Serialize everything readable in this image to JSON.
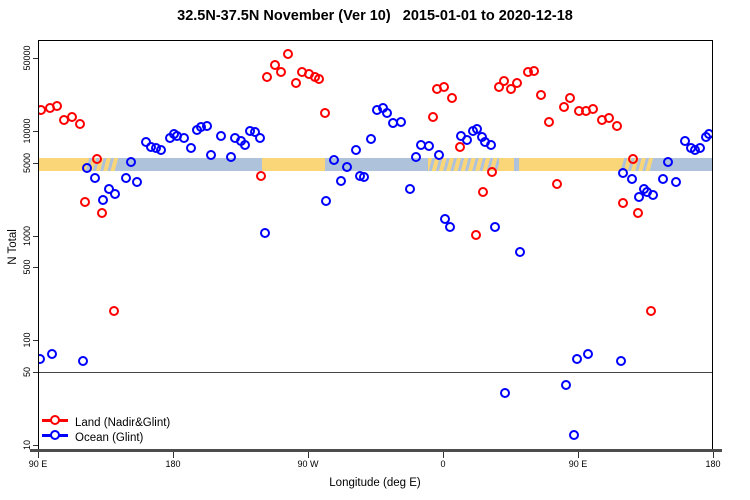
{
  "title": "32.5N-37.5N November (Ver 10)   2015-01-01 to 2020-12-18",
  "axes": {
    "x_label": "Longitude (deg E)",
    "y_label": "N Total"
  },
  "legend": {
    "items": [
      {
        "label": "Land (Nadir&Glint)",
        "color": "#ff0000"
      },
      {
        "label": "Ocean (Glint)",
        "color": "#0000ff"
      }
    ]
  },
  "chart_data": {
    "type": "scatter",
    "title": "32.5N-37.5N November (Ver 10)   2015-01-01 to 2020-12-18",
    "xlabel": "Longitude (deg E)",
    "ylabel": "N Total",
    "x_axis_note": "longitude increasing eastward from 90E, wrapping through 180, 90W, 0, 90E to 180 (450 deg span)",
    "x_axis_degrees_range": [
      90,
      540
    ],
    "y_scale": "log10",
    "y_log_range": [
      0.951,
      4.871
    ],
    "x_ticks": [
      {
        "t": 90,
        "label": "90 E"
      },
      {
        "t": 180,
        "label": "180"
      },
      {
        "t": 270,
        "label": "90 W"
      },
      {
        "t": 360,
        "label": "0"
      },
      {
        "t": 450,
        "label": "90 E"
      },
      {
        "t": 540,
        "label": "180"
      }
    ],
    "y_ticks": [
      {
        "v": 10,
        "label": "10"
      },
      {
        "v": 50,
        "label": "50"
      },
      {
        "v": 100,
        "label": "100"
      },
      {
        "v": 500,
        "label": "500"
      },
      {
        "v": 1000,
        "label": "1000"
      },
      {
        "v": 5000,
        "label": "5000"
      },
      {
        "v": 10000,
        "label": "10000"
      },
      {
        "v": 50000,
        "label": "50000"
      }
    ],
    "reference_line_y": 50,
    "map_strip": {
      "description": "land/ocean strip for 32.5N-37.5N drawn across plot near N=5000",
      "n_range": [
        4170,
        5530
      ],
      "land_color": "#fbd679",
      "ocean_color": "#afc2dc",
      "segments": [
        {
          "from": 90,
          "to": 121,
          "type": "land"
        },
        {
          "from": 121,
          "to": 143,
          "type": "coast"
        },
        {
          "from": 143,
          "to": 239,
          "type": "ocean"
        },
        {
          "from": 239,
          "to": 281,
          "type": "land"
        },
        {
          "from": 281,
          "to": 350,
          "type": "ocean"
        },
        {
          "from": 350,
          "to": 397,
          "type": "coast"
        },
        {
          "from": 397,
          "to": 407.5,
          "type": "land"
        },
        {
          "from": 407.5,
          "to": 410.5,
          "type": "ocean"
        },
        {
          "from": 410.5,
          "to": 478,
          "type": "land"
        },
        {
          "from": 478,
          "to": 500,
          "type": "coast"
        },
        {
          "from": 500,
          "to": 540,
          "type": "ocean"
        }
      ]
    },
    "series": [
      {
        "name": "Land (Nadir&Glint)",
        "color": "#ff0000",
        "points": [
          [
            91.8,
            15900
          ],
          [
            97.8,
            16500
          ],
          [
            102.7,
            17400
          ],
          [
            107.3,
            12800
          ],
          [
            112.9,
            13600
          ],
          [
            117.8,
            11600
          ],
          [
            121.1,
            2080
          ],
          [
            129.5,
            5370
          ],
          [
            132.7,
            1640
          ],
          [
            140.9,
            189
          ],
          [
            238.9,
            3720
          ],
          [
            242.9,
            32700
          ],
          [
            248.2,
            42900
          ],
          [
            251.8,
            36500
          ],
          [
            256.7,
            54600
          ],
          [
            261.8,
            29000
          ],
          [
            266.2,
            36500
          ],
          [
            270.5,
            34900
          ],
          [
            274.5,
            33100
          ],
          [
            277.3,
            31300
          ],
          [
            281.5,
            15000
          ],
          [
            353.3,
            13600
          ],
          [
            356.2,
            25100
          ],
          [
            360.7,
            26600
          ],
          [
            366.2,
            20600
          ],
          [
            371.1,
            7000
          ],
          [
            381.8,
            1020
          ],
          [
            386.7,
            2640
          ],
          [
            392.7,
            4090
          ],
          [
            397.1,
            26600
          ],
          [
            400.7,
            30300
          ],
          [
            405.1,
            25100
          ],
          [
            409.5,
            28600
          ],
          [
            416.7,
            37000
          ],
          [
            420.7,
            37800
          ],
          [
            425.5,
            22100
          ],
          [
            430.5,
            12100
          ],
          [
            436.2,
            3130
          ],
          [
            440.7,
            16900
          ],
          [
            444.6,
            20500
          ],
          [
            450.7,
            15500
          ],
          [
            455.3,
            15700
          ],
          [
            459.8,
            16400
          ],
          [
            465.8,
            12800
          ],
          [
            470.9,
            13300
          ],
          [
            476.2,
            11200
          ],
          [
            479.8,
            2060
          ],
          [
            486.5,
            5370
          ],
          [
            490.2,
            1630
          ],
          [
            498.7,
            190
          ]
        ]
      },
      {
        "name": "Ocean (Glint)",
        "color": "#0000ff",
        "points": [
          [
            91.3,
            66
          ],
          [
            99.1,
            74
          ],
          [
            120.2,
            64
          ],
          [
            122.9,
            4410
          ],
          [
            128.2,
            3540
          ],
          [
            133.5,
            2190
          ],
          [
            137.1,
            2780
          ],
          [
            141.1,
            2510
          ],
          [
            148.5,
            3540
          ],
          [
            152.2,
            5090
          ],
          [
            156.0,
            3290
          ],
          [
            162.2,
            7910
          ],
          [
            165.5,
            7080
          ],
          [
            168.9,
            6840
          ],
          [
            171.8,
            6590
          ],
          [
            177.8,
            8530
          ],
          [
            180.7,
            9380
          ],
          [
            182.9,
            8900
          ],
          [
            187.3,
            8530
          ],
          [
            191.8,
            6840
          ],
          [
            196.2,
            10200
          ],
          [
            198.9,
            10900
          ],
          [
            202.9,
            11200
          ],
          [
            205.3,
            5900
          ],
          [
            212.0,
            9000
          ],
          [
            218.9,
            5620
          ],
          [
            221.1,
            8530
          ],
          [
            225.1,
            8090
          ],
          [
            228.2,
            7360
          ],
          [
            231.1,
            10100
          ],
          [
            234.9,
            9800
          ],
          [
            237.8,
            8530
          ],
          [
            241.1,
            1070
          ],
          [
            282.2,
            2160
          ],
          [
            287.0,
            5330
          ],
          [
            291.8,
            3360
          ],
          [
            296.2,
            4510
          ],
          [
            302.2,
            6590
          ],
          [
            304.5,
            3720
          ],
          [
            307.0,
            3670
          ],
          [
            312.2,
            8340
          ],
          [
            316.2,
            15900
          ],
          [
            320.0,
            16500
          ],
          [
            322.9,
            15000
          ],
          [
            326.7,
            11900
          ],
          [
            331.8,
            12300
          ],
          [
            337.8,
            2780
          ],
          [
            342.2,
            5620
          ],
          [
            345.5,
            7360
          ],
          [
            350.7,
            7280
          ],
          [
            357.1,
            5910
          ],
          [
            361.1,
            1440
          ],
          [
            364.5,
            1200
          ],
          [
            371.8,
            8980
          ],
          [
            376.2,
            8150
          ],
          [
            380.0,
            10100
          ],
          [
            382.9,
            10400
          ],
          [
            386.0,
            8800
          ],
          [
            388.2,
            7910
          ],
          [
            391.8,
            7360
          ],
          [
            394.5,
            1200
          ],
          [
            401.3,
            31
          ],
          [
            411.1,
            703
          ],
          [
            441.8,
            37
          ],
          [
            447.1,
            12.5
          ],
          [
            449.1,
            66
          ],
          [
            456.9,
            74
          ],
          [
            478.5,
            64
          ],
          [
            480.2,
            3950
          ],
          [
            485.8,
            3480
          ],
          [
            490.9,
            2350
          ],
          [
            494.0,
            2780
          ],
          [
            496.2,
            2640
          ],
          [
            499.8,
            2450
          ],
          [
            506.5,
            3480
          ],
          [
            510.2,
            5090
          ],
          [
            515.3,
            3290
          ],
          [
            521.3,
            8090
          ],
          [
            525.1,
            6840
          ],
          [
            528.0,
            6590
          ],
          [
            531.3,
            6910
          ],
          [
            535.3,
            8800
          ],
          [
            537.5,
            9400
          ]
        ]
      }
    ]
  }
}
